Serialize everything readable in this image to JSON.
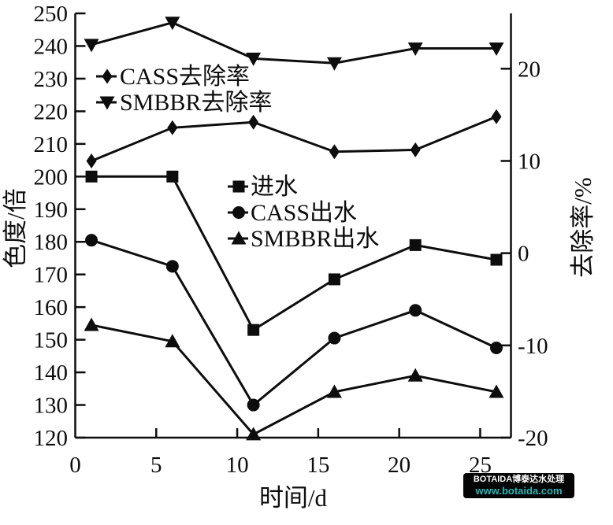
{
  "figure": {
    "background": "#ffffff",
    "ink_color": "#0d0d0d"
  },
  "chart_data": {
    "type": "line",
    "title": "",
    "xlabel": "时间/d",
    "ylabel_left": "色度/倍",
    "ylabel_right": "去除率/%",
    "grid": false,
    "x": [
      1,
      6,
      11,
      16,
      21,
      26
    ],
    "x_axis": {
      "min": 0,
      "max": 26.9,
      "ticks": [
        0,
        5,
        10,
        15,
        20,
        25
      ]
    },
    "left_axis": {
      "min": 120,
      "max": 250,
      "ticks": [
        120,
        130,
        140,
        150,
        160,
        170,
        180,
        190,
        200,
        210,
        220,
        230,
        240,
        250
      ]
    },
    "right_axis": {
      "min": -20,
      "max": 26,
      "ticks": [
        -20,
        -10,
        0,
        10,
        20
      ]
    },
    "series": [
      {
        "name": "进水",
        "axis": "left",
        "marker": "square",
        "values": [
          200,
          200,
          153,
          168.5,
          179,
          174.5
        ]
      },
      {
        "name": "CASS出水",
        "axis": "left",
        "marker": "circle",
        "values": [
          180.5,
          172.5,
          130,
          150.5,
          159,
          147.5
        ]
      },
      {
        "name": "SMBBR出水",
        "axis": "left",
        "marker": "triangle-up",
        "values": [
          154.5,
          149.5,
          121,
          134,
          139,
          134
        ]
      },
      {
        "name": "CASS去除率",
        "axis": "right",
        "marker": "diamond",
        "values": [
          10,
          13.6,
          14.2,
          11,
          11.2,
          14.8
        ]
      },
      {
        "name": "SMBBR去除率",
        "axis": "right",
        "marker": "triangle-down",
        "values": [
          22.6,
          25,
          21.1,
          20.6,
          22.2,
          22.2
        ]
      }
    ],
    "legend_groups": [
      {
        "position": "upper-left-inside",
        "entries": [
          "CASS去除率",
          "SMBBR去除率"
        ]
      },
      {
        "position": "center-inside",
        "entries": [
          "进水",
          "CASS出水",
          "SMBBR出水"
        ]
      }
    ]
  },
  "watermark": {
    "line1": "BOTAIDA博泰达水处理",
    "line2": "www.botaida.com",
    "bg_color": "#050505",
    "line1_color": "#ffffff",
    "line2_color": "#2ab5b5"
  }
}
